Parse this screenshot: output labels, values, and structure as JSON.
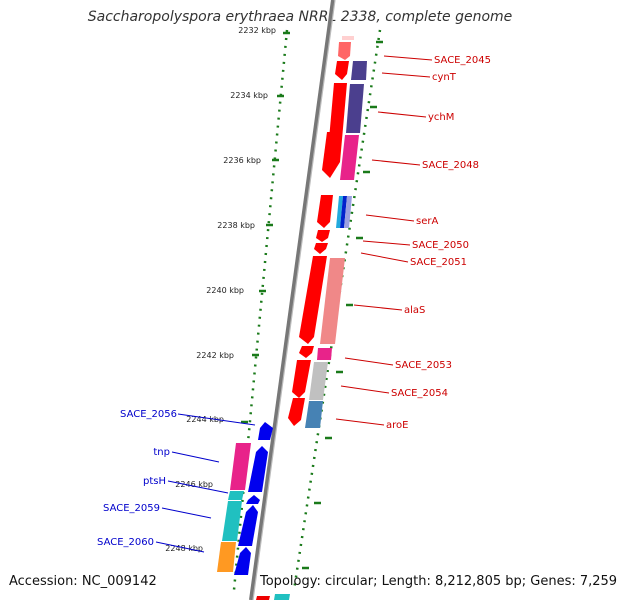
{
  "title": "Saccharopolyspora erythraea NRRL 2338, complete genome",
  "accession": "Accession: NC_009142",
  "topology": "Topology: circular; Length: 8,212,805 bp; Genes: 7,259",
  "colors": {
    "backbone": "#777777",
    "ruler": "#1a7a1a",
    "forward_label": "#cc0000",
    "reverse_label": "#0000cc"
  },
  "ruler": [
    "2232 kbp",
    "2234 kbp",
    "2236 kbp",
    "2238 kbp",
    "2240 kbp",
    "2242 kbp",
    "2244 kbp",
    "2246 kbp",
    "2248 kbp"
  ],
  "genes_right": [
    "SACE_2045",
    "cynT",
    "ychM",
    "SACE_2048",
    "serA",
    "SACE_2050",
    "SACE_2051",
    "alaS",
    "SACE_2053",
    "SACE_2054",
    "aroE"
  ],
  "genes_left": [
    "SACE_2056",
    "tnp",
    "ptsH",
    "SACE_2059",
    "SACE_2060"
  ]
}
